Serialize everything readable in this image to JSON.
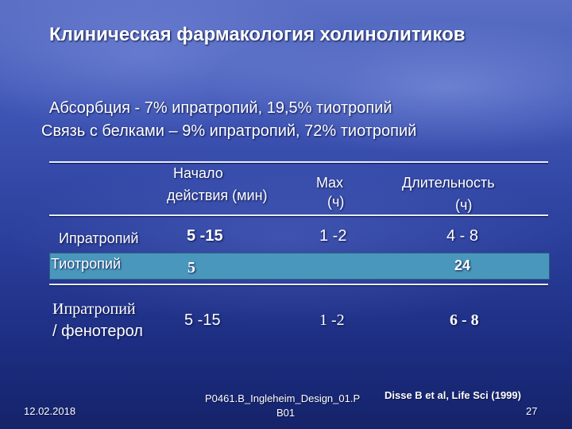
{
  "title": "Клиническая фармакология холинолитиков",
  "absorption": "Абсорбция            - 7% ипратропий, 19,5% тиотропий",
  "protein_binding": "Связь с белками – 9% ипратропий, 72%  тиотропий",
  "table": {
    "headers": {
      "onset_line1": "Начало",
      "onset_line2": "действия (мин)",
      "max_line1": "Max",
      "max_line2": "(ч)",
      "duration_line1": "Длительность",
      "duration_line2": "(ч)"
    },
    "rows": [
      {
        "drug": "Ипратропий",
        "onset": "5 -15",
        "max": "1 -2",
        "duration": "4 - 8"
      },
      {
        "drug": "Тиотропий",
        "onset": "5",
        "max": "",
        "duration": "24"
      },
      {
        "drug_line1": "Ипратропий",
        "drug_line2": "/ фенотерол",
        "onset": "5 -15",
        "max": "1 -2",
        "duration": "6 - 8"
      }
    ],
    "highlight_color": "#4a97bd"
  },
  "footer": {
    "date": "12.02.2018",
    "design_line1": "P0461.B_Ingleheim_Design_01.P",
    "design_line2": "B01",
    "citation": "Disse B et al, Life Sci (1999)",
    "page": "27"
  }
}
